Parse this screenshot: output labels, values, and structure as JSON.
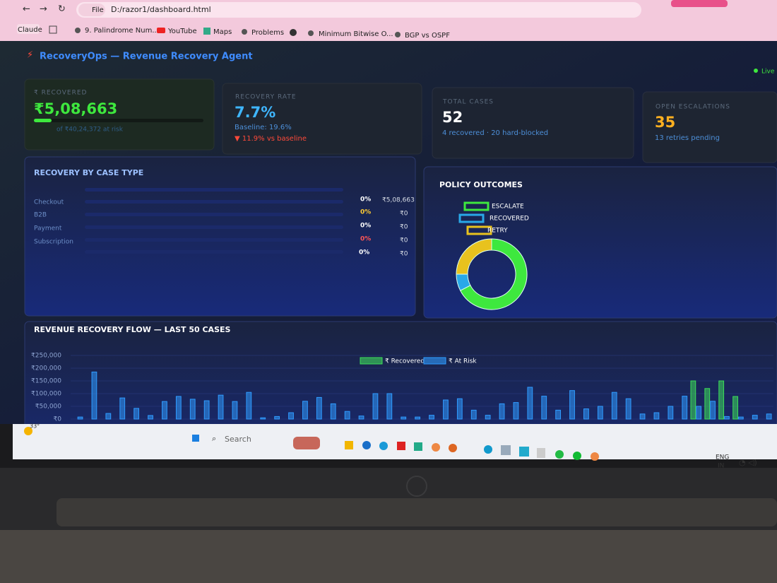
{
  "browser": {
    "scheme": "File",
    "url": "D:/razor1/dashboard.html"
  },
  "bookmarks": [
    "Claude",
    "9. Palindrome Num...",
    "YouTube",
    "Maps",
    "Problems",
    "Minimum Bitwise O...",
    "BGP vs OSPF"
  ],
  "header": {
    "title": "RecoveryOps — Revenue Recovery Agent",
    "status": "Live"
  },
  "kpis": [
    {
      "label": "₹ RECOVERED",
      "value": "₹5,08,663",
      "note": "of ₹40,24,372 at risk"
    },
    {
      "label": "RECOVERY RATE",
      "value": "7.7%",
      "note": "Baseline: 19.6%",
      "delta": "▼ 11.9% vs baseline"
    },
    {
      "label": "TOTAL CASES",
      "value": "52",
      "note": "4 recovered · 20 hard-blocked"
    },
    {
      "label": "OPEN ESCALATIONS",
      "value": "35",
      "note": "13 retries pending"
    }
  ],
  "case_types": {
    "title": "RECOVERY BY CASE TYPE",
    "rows": [
      {
        "label": "Checkout",
        "rate": "0%",
        "amount": "₹5,08,663"
      },
      {
        "label": "B2B",
        "rate": "0%",
        "amount": "₹0"
      },
      {
        "label": "Payment",
        "rate": "0%",
        "amount": "₹0"
      },
      {
        "label": "Subscription",
        "rate": "0%",
        "amount": "₹0"
      },
      {
        "label": null,
        "rate": "0%",
        "amount": "₹0"
      }
    ]
  },
  "policy_outcomes": {
    "type": "donut",
    "title": "POLICY OUTCOMES",
    "categories": [
      "ESCALATE",
      "RECOVERED",
      "RETRY"
    ],
    "values": [
      35,
      4,
      13
    ],
    "colors": [
      "#3ee83e",
      "#29a8e8",
      "#e8c21e"
    ]
  },
  "revenue_flow": {
    "type": "bar",
    "title": "REVENUE RECOVERY FLOW — LAST 50 CASES",
    "ylim": [
      0,
      260000
    ],
    "yticks": [
      {
        "value": 0,
        "label": "₹0"
      },
      {
        "value": 50000,
        "label": "₹50,000"
      },
      {
        "value": 100000,
        "label": "₹100,000"
      },
      {
        "value": 150000,
        "label": "₹150,000"
      },
      {
        "value": 200000,
        "label": "₹200,000"
      },
      {
        "value": 250000,
        "label": "₹250,000"
      }
    ],
    "grid": true,
    "series": [
      {
        "name": "₹ Recovered",
        "color": "#3ddc5a",
        "values": [
          0,
          0,
          0,
          0,
          0,
          0,
          0,
          0,
          0,
          0,
          0,
          0,
          0,
          0,
          0,
          0,
          0,
          0,
          0,
          0,
          0,
          0,
          0,
          0,
          0,
          0,
          0,
          0,
          0,
          0,
          0,
          0,
          0,
          0,
          0,
          0,
          0,
          0,
          0,
          0,
          0,
          0,
          0,
          0,
          150000,
          120000,
          150000,
          88663,
          0,
          0
        ]
      },
      {
        "name": "₹ At Risk",
        "color": "#2f9bff",
        "values": [
          8000,
          185000,
          22000,
          83000,
          42000,
          14000,
          69000,
          89000,
          78000,
          72000,
          94000,
          69000,
          105000,
          5000,
          10000,
          25000,
          70000,
          85000,
          60000,
          30000,
          12000,
          100000,
          100000,
          8000,
          8000,
          15000,
          75000,
          80000,
          35000,
          15000,
          60000,
          65000,
          125000,
          90000,
          35000,
          112000,
          40000,
          50000,
          105000,
          80000,
          20000,
          25000,
          50000,
          90000,
          50000,
          70000,
          10000,
          8000,
          15000,
          20000
        ]
      }
    ]
  },
  "taskbar": {
    "weather": "33°",
    "search": "Search",
    "lang": "ENG",
    "region": "IN"
  }
}
